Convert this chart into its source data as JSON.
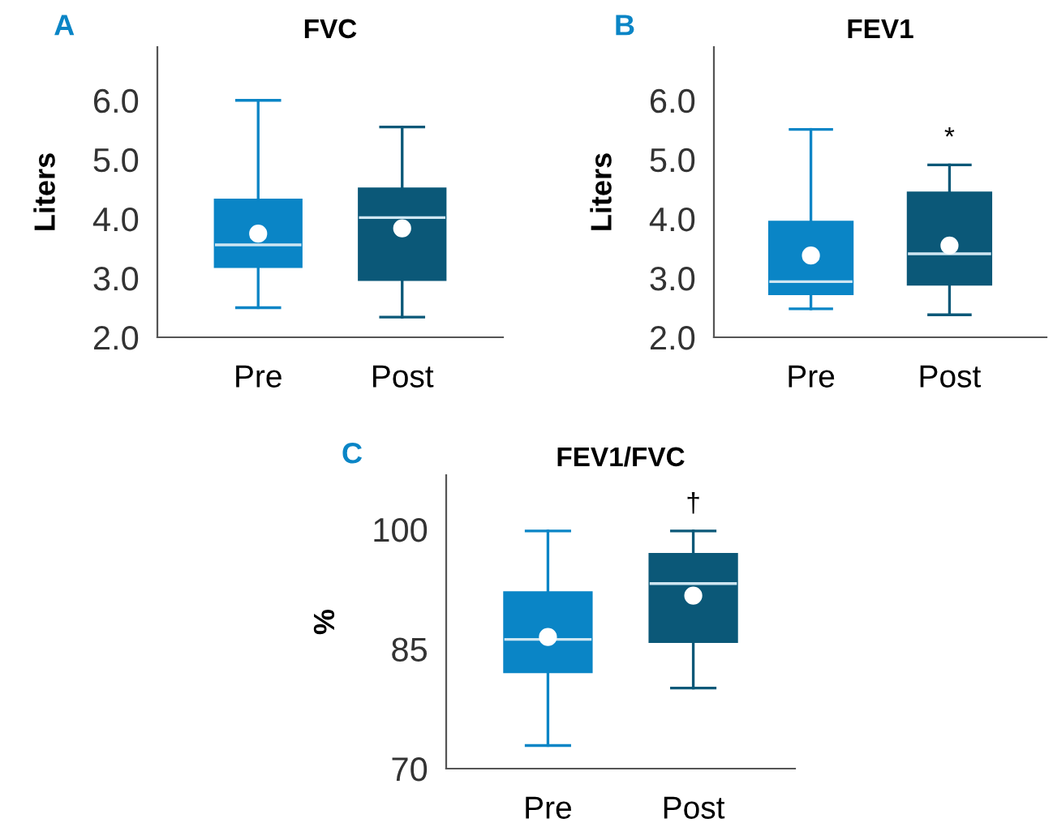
{
  "chart_data": [
    {
      "type": "box",
      "title": "FVC",
      "ylabel": "Liters",
      "categories": [
        "Pre",
        "Post"
      ],
      "colors": [
        "#0a85c6",
        "#0b5878"
      ],
      "ylim": [
        2.0,
        6.9
      ],
      "yticks": [
        {
          "value": 2,
          "label": "2.0"
        },
        {
          "value": 3,
          "label": "3.0"
        },
        {
          "value": 4,
          "label": "4.0"
        },
        {
          "value": 5,
          "label": "5.0"
        },
        {
          "value": 6,
          "label": "6.0"
        }
      ],
      "grid": false,
      "annotations": [
        "A"
      ],
      "boxes": [
        {
          "low": 2.5,
          "q1": 3.19,
          "median": 3.56,
          "q3": 4.32,
          "high": 6.0,
          "mean": 3.75
        },
        {
          "low": 2.34,
          "q1": 2.97,
          "median": 4.02,
          "q3": 4.51,
          "high": 5.55,
          "mean": 3.84
        }
      ]
    },
    {
      "type": "box",
      "title": "FEV1",
      "ylabel": "Liters",
      "categories": [
        "Pre",
        "Post"
      ],
      "colors": [
        "#0a85c6",
        "#0b5878"
      ],
      "ylim": [
        2.0,
        6.9
      ],
      "yticks": [
        {
          "value": 2,
          "label": "2.0"
        },
        {
          "value": 3,
          "label": "3.0"
        },
        {
          "value": 4,
          "label": "4.0"
        },
        {
          "value": 5,
          "label": "5.0"
        },
        {
          "value": 6,
          "label": "6.0"
        }
      ],
      "grid": false,
      "annotations": [
        "B",
        "*"
      ],
      "boxes": [
        {
          "low": 2.48,
          "q1": 2.73,
          "median": 2.94,
          "q3": 3.95,
          "high": 5.51,
          "mean": 3.38
        },
        {
          "low": 2.38,
          "q1": 2.89,
          "median": 3.41,
          "q3": 4.44,
          "high": 4.91,
          "mean": 3.55
        }
      ]
    },
    {
      "type": "box",
      "title": "FEV1/FVC",
      "ylabel": "%",
      "categories": [
        "Pre",
        "Post"
      ],
      "colors": [
        "#0a85c6",
        "#0b5878"
      ],
      "ylim": [
        70,
        106.8
      ],
      "yticks": [
        70,
        85,
        100
      ],
      "grid": false,
      "annotations": [
        "C",
        "†"
      ],
      "boxes": [
        {
          "low": 72.9,
          "q1": 82.1,
          "median": 86.2,
          "q3": 92.1,
          "high": 99.8,
          "mean": 86.5
        },
        {
          "low": 80.1,
          "q1": 85.9,
          "median": 93.2,
          "q3": 96.9,
          "high": 99.8,
          "mean": 91.7
        }
      ]
    }
  ]
}
